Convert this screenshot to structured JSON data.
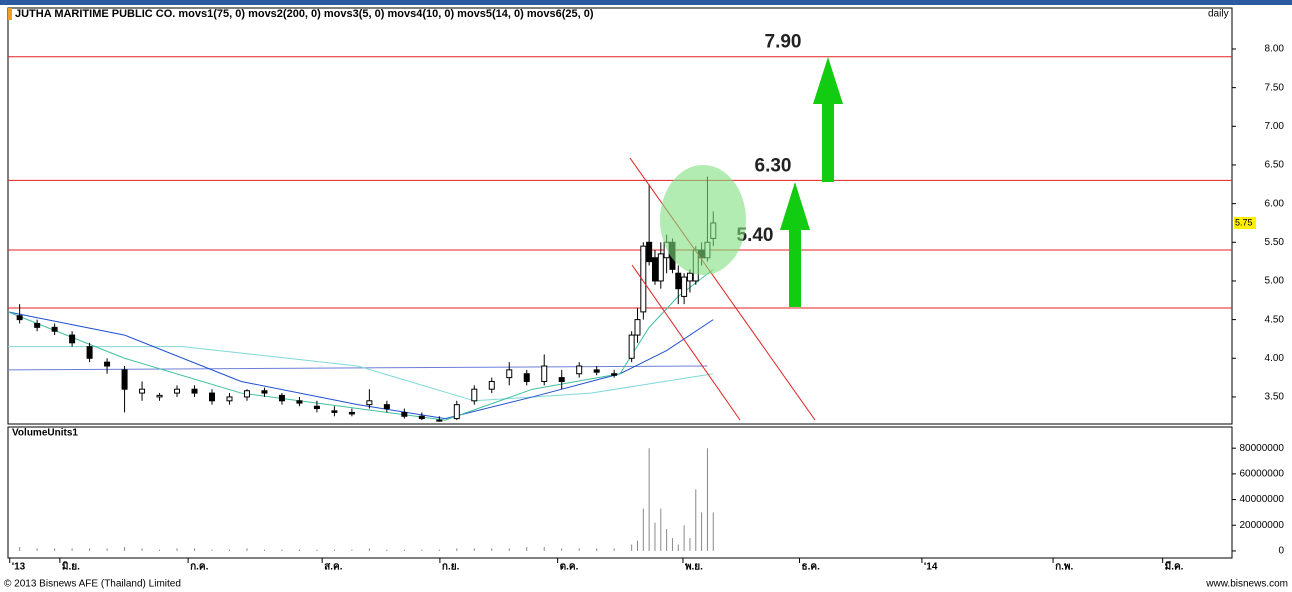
{
  "chart_data": {
    "type": "candlestick",
    "title": "JUTHA MARITIME PUBLIC CO. movs1(75, 0) movs2(200, 0) movs3(5, 0) movs4(10, 0) movs5(14, 0) movs6(25, 0)",
    "period": "daily",
    "volume_title": "VolumeUnits1",
    "copyright": "© 2013 Bisnews AFE (Thailand) Limited",
    "website": "www.bisnews.com",
    "xlim": [
      0,
      210
    ],
    "xticks": [
      {
        "value": 0.3,
        "label": "'13"
      },
      {
        "value": 8.9,
        "label": "มิ.ย."
      },
      {
        "value": 30.9,
        "label": "ก.ค."
      },
      {
        "value": 53.9,
        "label": "ส.ค."
      },
      {
        "value": 74.1,
        "label": "ก.ย."
      },
      {
        "value": 94.3,
        "label": "ต.ค."
      },
      {
        "value": 115.8,
        "label": "พ.ย."
      },
      {
        "value": 135.8,
        "label": "ธ.ค."
      },
      {
        "value": 156.8,
        "label": "'14"
      },
      {
        "value": 179.3,
        "label": "ก.พ."
      },
      {
        "value": 198.1,
        "label": "มี.ค."
      }
    ],
    "ylim": [
      3.15,
      8.53
    ],
    "yticks": [
      {
        "value": 3.5,
        "label": "3.50"
      },
      {
        "value": 4,
        "label": "4.00"
      },
      {
        "value": 4.5,
        "label": "4.50"
      },
      {
        "value": 5,
        "label": "5.00"
      },
      {
        "value": 5.5,
        "label": "5.50"
      },
      {
        "value": 6,
        "label": "6.00"
      },
      {
        "value": 6.5,
        "label": "6.50"
      },
      {
        "value": 7,
        "label": "7.00"
      },
      {
        "value": 7.5,
        "label": "7.50"
      },
      {
        "value": 8,
        "label": "8.00"
      }
    ],
    "last_price": {
      "value": 5.75,
      "label": "5.75"
    },
    "levels": [
      {
        "value": 7.9,
        "label": "7.90"
      },
      {
        "value": 6.3,
        "label": "6.30"
      },
      {
        "value": 5.4,
        "label": "5.40"
      },
      4.65
    ],
    "level_color": "#e02020",
    "candles": {
      "x": [
        2,
        5,
        8,
        11,
        14,
        17,
        20,
        23,
        26,
        29,
        32,
        35,
        38,
        41,
        44,
        47,
        50,
        53,
        56,
        59,
        62,
        65,
        68,
        71,
        74,
        77,
        80,
        83,
        86,
        89,
        92,
        95,
        98,
        101,
        104,
        107,
        108,
        109,
        110,
        111,
        112,
        113,
        114,
        115,
        116,
        117,
        118,
        119,
        120,
        121
      ],
      "open": [
        4.55,
        4.45,
        4.4,
        4.3,
        4.15,
        3.95,
        3.85,
        3.55,
        3.5,
        3.55,
        3.6,
        3.55,
        3.45,
        3.5,
        3.58,
        3.52,
        3.45,
        3.38,
        3.32,
        3.3,
        3.4,
        3.4,
        3.3,
        3.25,
        3.2,
        3.22,
        3.45,
        3.6,
        3.75,
        3.8,
        3.7,
        3.75,
        3.8,
        3.85,
        3.8,
        4.0,
        4.3,
        4.6,
        5.5,
        5.3,
        5.0,
        5.3,
        5.5,
        5.1,
        4.8,
        5.0,
        5.0,
        5.4,
        5.3,
        5.55
      ],
      "high": [
        4.7,
        4.5,
        4.45,
        4.35,
        4.2,
        4.0,
        3.9,
        3.7,
        3.55,
        3.65,
        3.65,
        3.6,
        3.55,
        3.6,
        3.62,
        3.55,
        3.5,
        3.45,
        3.38,
        3.35,
        3.6,
        3.45,
        3.35,
        3.3,
        3.25,
        3.45,
        3.65,
        3.75,
        3.95,
        3.85,
        4.05,
        3.85,
        3.95,
        3.9,
        3.85,
        4.35,
        4.65,
        5.5,
        6.25,
        5.4,
        5.5,
        5.6,
        5.55,
        5.2,
        5.1,
        5.15,
        5.45,
        5.5,
        6.35,
        5.9
      ],
      "low": [
        4.45,
        4.35,
        4.3,
        4.15,
        3.95,
        3.8,
        3.3,
        3.45,
        3.45,
        3.5,
        3.5,
        3.4,
        3.4,
        3.45,
        3.5,
        3.4,
        3.38,
        3.3,
        3.25,
        3.25,
        3.35,
        3.3,
        3.22,
        3.2,
        3.18,
        3.2,
        3.4,
        3.55,
        3.65,
        3.65,
        3.65,
        3.6,
        3.75,
        3.78,
        3.75,
        3.95,
        4.2,
        4.5,
        5.2,
        4.95,
        4.9,
        5.1,
        5.1,
        4.7,
        4.7,
        4.85,
        4.95,
        5.2,
        5.25,
        5.45
      ],
      "close": [
        4.5,
        4.4,
        4.35,
        4.2,
        4.0,
        3.9,
        3.6,
        3.6,
        3.52,
        3.6,
        3.55,
        3.45,
        3.5,
        3.58,
        3.55,
        3.45,
        3.42,
        3.35,
        3.3,
        3.28,
        3.45,
        3.35,
        3.25,
        3.22,
        3.2,
        3.4,
        3.6,
        3.7,
        3.85,
        3.7,
        3.9,
        3.7,
        3.9,
        3.82,
        3.78,
        4.3,
        4.5,
        5.45,
        5.25,
        5.0,
        5.35,
        5.5,
        5.15,
        4.9,
        5.05,
        5.1,
        5.4,
        5.3,
        5.5,
        5.75
      ]
    },
    "volume": {
      "ylim": [
        -5500000,
        96500000
      ],
      "yticks": [
        0,
        20000000,
        40000000,
        60000000,
        80000000
      ],
      "values": [
        3000000,
        2000000,
        2000000,
        2000000,
        2000000,
        2000000,
        3000000,
        2000000,
        1000000,
        2000000,
        2000000,
        1000000,
        1000000,
        2000000,
        1000000,
        1000000,
        1000000,
        1000000,
        1000000,
        1000000,
        2000000,
        1000000,
        1000000,
        1000000,
        1000000,
        2000000,
        2000000,
        2000000,
        2000000,
        3000000,
        3000000,
        2000000,
        2000000,
        2000000,
        2000000,
        5000000,
        8000000,
        33000000,
        80000000,
        22000000,
        33000000,
        17000000,
        10000000,
        5000000,
        20000000,
        10000000,
        48000000,
        30000000,
        80000000,
        30000000
      ],
      "color": "#888888"
    },
    "series": [
      {
        "color": "#6b7fd8",
        "x": [
          0,
          120
        ],
        "values": [
          3.85,
          3.9
        ]
      },
      {
        "color": "#7fd8d8",
        "x": [
          0,
          30,
          60,
          80,
          100,
          121
        ],
        "values": [
          4.15,
          4.15,
          3.9,
          3.45,
          3.55,
          3.8
        ]
      },
      {
        "color": "#2050d0",
        "x": [
          0,
          20,
          40,
          60,
          75,
          90,
          105,
          113,
          121
        ],
        "values": [
          4.6,
          4.3,
          3.7,
          3.4,
          3.22,
          3.5,
          3.8,
          4.1,
          4.5
        ]
      },
      {
        "color": "#40c0a0",
        "x": [
          0,
          20,
          40,
          60,
          75,
          90,
          105,
          110,
          115,
          121
        ],
        "values": [
          4.6,
          4.0,
          3.55,
          3.35,
          3.2,
          3.6,
          3.8,
          4.4,
          4.8,
          5.15
        ]
      }
    ]
  }
}
